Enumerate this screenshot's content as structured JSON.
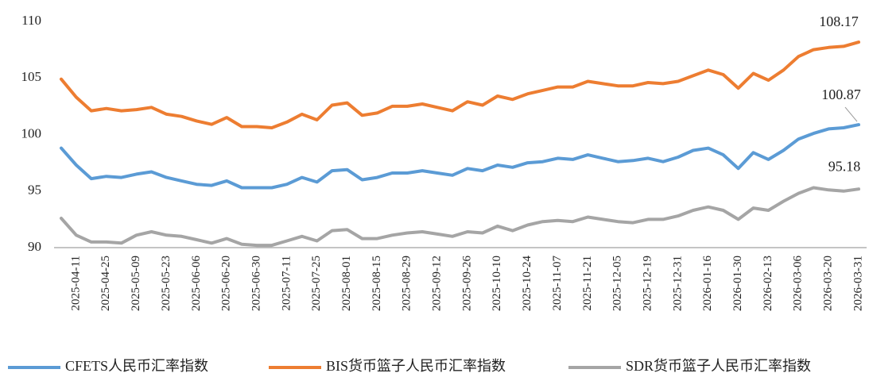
{
  "chart_data": {
    "type": "line",
    "categories": [
      null,
      "2025-04-11",
      null,
      "2025-04-25",
      null,
      "2025-05-09",
      null,
      "2025-05-23",
      null,
      "2025-06-06",
      null,
      "2025-06-20",
      null,
      "2025-06-30",
      null,
      "2025-07-11",
      null,
      "2025-07-25",
      null,
      "2025-08-01",
      null,
      "2025-08-15",
      null,
      "2025-08-29",
      null,
      "2025-09-12",
      null,
      "2025-09-26",
      null,
      "2025-10-10",
      null,
      "2025-10-24",
      null,
      "2025-11-07",
      null,
      "2025-11-21",
      null,
      "2025-12-05",
      null,
      "2025-12-19",
      null,
      "2025-12-31",
      null,
      "2026-01-16",
      null,
      "2026-01-30",
      null,
      "2026-02-13",
      null,
      "2026-03-06",
      null,
      "2026-03-20",
      null,
      "2026-03-31"
    ],
    "series": [
      {
        "name": "CFETS人民币汇率指数",
        "color": "#5b9bd5",
        "values": [
          98.8,
          97.3,
          96.1,
          96.3,
          96.2,
          96.5,
          96.7,
          96.2,
          95.9,
          95.6,
          95.5,
          95.9,
          95.3,
          95.3,
          95.3,
          95.6,
          96.2,
          95.8,
          96.8,
          96.9,
          96.0,
          96.2,
          96.6,
          96.6,
          96.8,
          96.6,
          96.4,
          97.0,
          96.8,
          97.3,
          97.1,
          97.5,
          97.6,
          97.9,
          97.8,
          98.2,
          97.9,
          97.6,
          97.7,
          97.9,
          97.6,
          98.0,
          98.6,
          98.8,
          98.2,
          97.0,
          98.4,
          97.8,
          98.6,
          99.6,
          100.1,
          100.5,
          100.6,
          100.87
        ]
      },
      {
        "name": "BIS货币篮子人民币汇率指数",
        "color": "#ed7d31",
        "values": [
          104.9,
          103.3,
          102.1,
          102.3,
          102.1,
          102.2,
          102.4,
          101.8,
          101.6,
          101.2,
          100.9,
          101.5,
          100.7,
          100.7,
          100.6,
          101.1,
          101.8,
          101.3,
          102.6,
          102.8,
          101.7,
          101.9,
          102.5,
          102.5,
          102.7,
          102.4,
          102.1,
          102.9,
          102.6,
          103.4,
          103.1,
          103.6,
          103.9,
          104.2,
          104.2,
          104.7,
          104.5,
          104.3,
          104.3,
          104.6,
          104.5,
          104.7,
          105.2,
          105.7,
          105.3,
          104.1,
          105.4,
          104.8,
          105.7,
          106.9,
          107.5,
          107.7,
          107.8,
          108.17
        ]
      },
      {
        "name": "SDR货币篮子人民币汇率指数",
        "color": "#a5a5a5",
        "values": [
          92.6,
          91.1,
          90.5,
          90.5,
          90.4,
          91.1,
          91.4,
          91.1,
          91.0,
          90.7,
          90.4,
          90.8,
          90.3,
          90.2,
          90.2,
          90.6,
          91.0,
          90.6,
          91.5,
          91.6,
          90.8,
          90.8,
          91.1,
          91.3,
          91.4,
          91.2,
          91.0,
          91.4,
          91.3,
          91.9,
          91.5,
          92.0,
          92.3,
          92.4,
          92.3,
          92.7,
          92.5,
          92.3,
          92.2,
          92.5,
          92.5,
          92.8,
          93.3,
          93.6,
          93.3,
          92.5,
          93.5,
          93.3,
          94.1,
          94.8,
          95.3,
          95.1,
          95.0,
          95.18
        ]
      }
    ],
    "ylim": [
      90,
      110
    ],
    "yticks": [
      90,
      95,
      100,
      105,
      110
    ],
    "grid": false,
    "legend": "bottom"
  }
}
